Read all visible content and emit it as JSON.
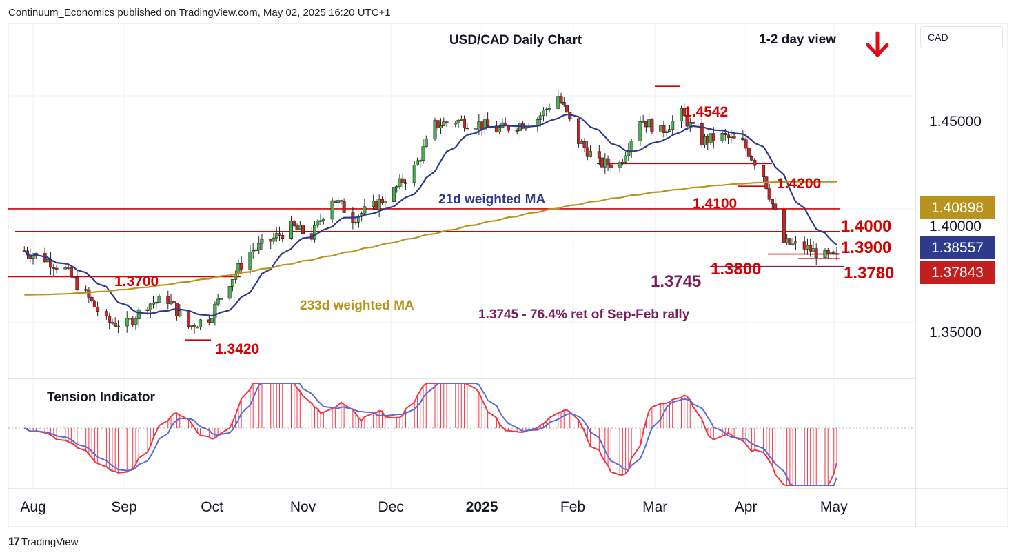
{
  "publisher_line": "Continuum_Economics published on TradingView.com, May 02, 2025 16:20 UTC+1",
  "title": "USD/CAD Daily Chart",
  "view_label": "1-2 day view",
  "currency_button": "CAD",
  "branding": "TradingView",
  "colors": {
    "bull_candle": "#4caf50",
    "bear_candle": "#c62828",
    "level_line": "#d50000",
    "ma21": "#2e3a8c",
    "ma233": "#b8941f",
    "retrace_text": "#7b1f5a",
    "tension_fast": "#f23645",
    "tension_slow": "#5b6bd6",
    "badge_ma233": "#b8941f",
    "badge_ma21": "#2e3a8c",
    "badge_price": "#c41f1f"
  },
  "annotations": {
    "ma21_label": "21d weighted MA",
    "ma233_label": "233d weighted MA",
    "retrace_label": "1.3745 - 76.4% ret of Sep-Feb rally",
    "tension_label": "Tension Indicator",
    "arrow_icon": "down-arrow-icon"
  },
  "price_axis": {
    "ticks": [
      "1.45000",
      "1.40000",
      "1.35000"
    ]
  },
  "badges": {
    "ma233": "1.40898",
    "ma21": "1.38557",
    "price": "1.37843"
  },
  "levels": {
    "l14542": "1.4542",
    "l14200": "1.4200",
    "l14100": "1.4100",
    "l14000": "1.4000",
    "l13900": "1.3900",
    "l13800": "1.3800",
    "l13780": "1.3780",
    "l13745": "1.3745",
    "l13700": "1.3700",
    "l13420": "1.3420"
  },
  "months": [
    "Aug",
    "Sep",
    "Oct",
    "Nov",
    "Dec",
    "2025",
    "Feb",
    "Mar",
    "Apr",
    "May"
  ],
  "chart_data": {
    "type": "candlestick",
    "title": "USD/CAD Daily Chart",
    "ylim": [
      1.325,
      1.482
    ],
    "x_labels": [
      "Aug",
      "Sep",
      "Oct",
      "Nov",
      "Dec",
      "2025",
      "Feb",
      "Mar",
      "Apr",
      "May"
    ],
    "horizontal_levels": [
      1.4542,
      1.42,
      1.41,
      1.4,
      1.39,
      1.38,
      1.378,
      1.3745,
      1.37,
      1.342
    ],
    "ma21_last": 1.38557,
    "ma233_last": 1.40898,
    "last_close": 1.37843,
    "close_path": [
      [
        "2024-07-29",
        1.3815
      ],
      [
        "2024-08-05",
        1.378
      ],
      [
        "2024-08-12",
        1.373
      ],
      [
        "2024-08-19",
        1.362
      ],
      [
        "2024-08-26",
        1.35
      ],
      [
        "2024-09-02",
        1.349
      ],
      [
        "2024-09-09",
        1.358
      ],
      [
        "2024-09-16",
        1.36
      ],
      [
        "2024-09-23",
        1.348
      ],
      [
        "2024-09-30",
        1.352
      ],
      [
        "2024-10-07",
        1.368
      ],
      [
        "2024-10-14",
        1.381
      ],
      [
        "2024-10-21",
        1.386
      ],
      [
        "2024-10-28",
        1.392
      ],
      [
        "2024-11-04",
        1.388
      ],
      [
        "2024-11-11",
        1.405
      ],
      [
        "2024-11-18",
        1.396
      ],
      [
        "2024-11-25",
        1.401
      ],
      [
        "2024-12-02",
        1.408
      ],
      [
        "2024-12-09",
        1.418
      ],
      [
        "2024-12-16",
        1.437
      ],
      [
        "2024-12-23",
        1.439
      ],
      [
        "2024-12-30",
        1.438
      ],
      [
        "2025-01-06",
        1.435
      ],
      [
        "2025-01-13",
        1.437
      ],
      [
        "2025-01-20",
        1.44
      ],
      [
        "2025-01-27",
        1.45
      ],
      [
        "2025-02-03",
        1.43
      ],
      [
        "2025-02-10",
        1.42
      ],
      [
        "2025-02-17",
        1.42
      ],
      [
        "2025-02-24",
        1.44
      ],
      [
        "2025-03-03",
        1.434
      ],
      [
        "2025-03-10",
        1.442
      ],
      [
        "2025-03-17",
        1.43
      ],
      [
        "2025-03-24",
        1.432
      ],
      [
        "2025-03-31",
        1.429
      ],
      [
        "2025-04-07",
        1.415
      ],
      [
        "2025-04-14",
        1.385
      ],
      [
        "2025-04-21",
        1.383
      ],
      [
        "2025-04-28",
        1.379
      ],
      [
        "2025-05-02",
        1.3784
      ]
    ]
  }
}
